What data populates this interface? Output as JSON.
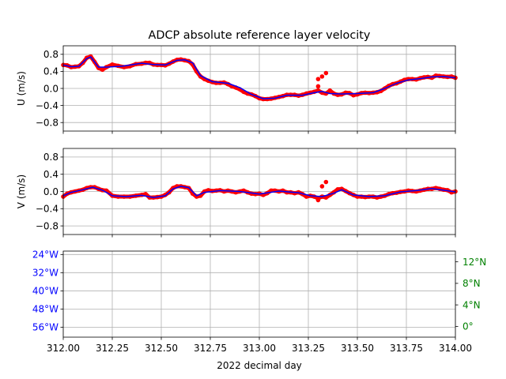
{
  "figure": {
    "title": "ADCP absolute reference layer velocity",
    "xlabel": "2022 decimal day"
  },
  "colors": {
    "raw": "#ff0000",
    "smoothed": "#0000ff",
    "grid": "#b0b0b0",
    "lon_axis": "#0000ff",
    "lat_axis": "#008000"
  },
  "chart_data": [
    {
      "type": "line",
      "ylabel": "U (m/s)",
      "xlim": [
        312.0,
        314.0
      ],
      "ylim": [
        -1.0,
        1.0
      ],
      "yticks": [
        -0.8,
        -0.4,
        0.0,
        0.4,
        0.8
      ],
      "yticklabels": [
        "−0.8",
        "−0.4",
        "0.0",
        "0.4",
        "0.8"
      ],
      "grid": true,
      "series": [
        {
          "role": "raw points",
          "color": "red",
          "x": [
            312.0,
            312.02,
            312.04,
            312.06,
            312.08,
            312.1,
            312.12,
            312.14,
            312.16,
            312.18,
            312.2,
            312.22,
            312.25,
            312.28,
            312.31,
            312.34,
            312.37,
            312.4,
            312.42,
            312.44,
            312.46,
            312.48,
            312.5,
            312.52,
            312.54,
            312.56,
            312.58,
            312.6,
            312.62,
            312.64,
            312.66,
            312.68,
            312.7,
            312.72,
            312.74,
            312.76,
            312.78,
            312.8,
            312.82,
            312.84,
            312.86,
            312.88,
            312.9,
            312.92,
            312.94,
            312.96,
            312.98,
            313.0,
            313.02,
            313.04,
            313.06,
            313.08,
            313.1,
            313.12,
            313.14,
            313.16,
            313.18,
            313.2,
            313.22,
            313.24,
            313.26,
            313.28,
            313.3,
            313.32,
            313.34,
            313.36,
            313.38,
            313.4,
            313.42,
            313.44,
            313.46,
            313.48,
            313.5,
            313.52,
            313.54,
            313.56,
            313.58,
            313.6,
            313.62,
            313.64,
            313.66,
            313.68,
            313.7,
            313.72,
            313.74,
            313.76,
            313.78,
            313.8,
            313.82,
            313.84,
            313.86,
            313.88,
            313.9,
            313.92,
            313.94,
            313.96,
            313.98,
            314.0
          ],
          "y": [
            0.55,
            0.54,
            0.5,
            0.51,
            0.52,
            0.6,
            0.72,
            0.75,
            0.62,
            0.48,
            0.44,
            0.5,
            0.56,
            0.53,
            0.5,
            0.52,
            0.57,
            0.58,
            0.6,
            0.6,
            0.56,
            0.55,
            0.55,
            0.54,
            0.58,
            0.63,
            0.67,
            0.68,
            0.66,
            0.64,
            0.56,
            0.4,
            0.28,
            0.22,
            0.18,
            0.15,
            0.13,
            0.13,
            0.14,
            0.1,
            0.05,
            0.02,
            -0.02,
            -0.08,
            -0.12,
            -0.14,
            -0.18,
            -0.23,
            -0.25,
            -0.25,
            -0.24,
            -0.22,
            -0.2,
            -0.18,
            -0.15,
            -0.15,
            -0.15,
            -0.17,
            -0.15,
            -0.12,
            -0.1,
            -0.08,
            -0.05,
            -0.1,
            -0.12,
            -0.05,
            -0.12,
            -0.15,
            -0.14,
            -0.1,
            -0.11,
            -0.16,
            -0.14,
            -0.11,
            -0.1,
            -0.11,
            -0.1,
            -0.09,
            -0.06,
            0.0,
            0.06,
            0.1,
            0.12,
            0.16,
            0.2,
            0.22,
            0.22,
            0.21,
            0.24,
            0.26,
            0.27,
            0.25,
            0.3,
            0.29,
            0.28,
            0.27,
            0.28,
            0.25
          ],
          "outliers": {
            "x": [
              313.3,
              313.3,
              313.32,
              313.34
            ],
            "y": [
              0.05,
              0.22,
              0.28,
              0.36
            ]
          }
        },
        {
          "role": "smoothed",
          "color": "blue",
          "x": [
            312.0,
            312.04,
            312.08,
            312.12,
            312.14,
            312.18,
            312.22,
            312.3,
            312.4,
            312.46,
            312.52,
            312.58,
            312.62,
            312.66,
            312.7,
            312.76,
            312.84,
            312.9,
            312.96,
            313.02,
            313.08,
            313.14,
            313.22,
            313.28,
            313.32,
            313.36,
            313.42,
            313.5,
            313.58,
            313.64,
            313.7,
            313.76,
            313.82,
            313.88,
            313.94,
            314.0
          ],
          "y": [
            0.55,
            0.51,
            0.52,
            0.7,
            0.74,
            0.5,
            0.5,
            0.52,
            0.59,
            0.56,
            0.55,
            0.66,
            0.67,
            0.6,
            0.3,
            0.16,
            0.12,
            0.02,
            -0.14,
            -0.24,
            -0.23,
            -0.16,
            -0.16,
            -0.1,
            -0.07,
            -0.12,
            -0.13,
            -0.12,
            -0.1,
            0.0,
            0.12,
            0.2,
            0.23,
            0.27,
            0.28,
            0.25
          ]
        }
      ]
    },
    {
      "type": "line",
      "ylabel": "V (m/s)",
      "xlim": [
        312.0,
        314.0
      ],
      "ylim": [
        -1.0,
        1.0
      ],
      "yticks": [
        -0.8,
        -0.4,
        0.0,
        0.4,
        0.8
      ],
      "yticklabels": [
        "−0.8",
        "−0.4",
        "0.0",
        "0.4",
        "0.8"
      ],
      "grid": true,
      "series": [
        {
          "role": "raw points",
          "color": "red",
          "x": [
            312.0,
            312.02,
            312.04,
            312.06,
            312.08,
            312.1,
            312.12,
            312.14,
            312.16,
            312.18,
            312.2,
            312.22,
            312.25,
            312.28,
            312.31,
            312.34,
            312.37,
            312.4,
            312.42,
            312.44,
            312.46,
            312.48,
            312.5,
            312.52,
            312.54,
            312.56,
            312.58,
            312.6,
            312.62,
            312.64,
            312.66,
            312.68,
            312.7,
            312.72,
            312.74,
            312.76,
            312.78,
            312.8,
            312.82,
            312.84,
            312.86,
            312.88,
            312.9,
            312.92,
            312.94,
            312.96,
            312.98,
            313.0,
            313.02,
            313.04,
            313.06,
            313.08,
            313.1,
            313.12,
            313.14,
            313.16,
            313.18,
            313.2,
            313.22,
            313.24,
            313.26,
            313.28,
            313.3,
            313.32,
            313.34,
            313.36,
            313.38,
            313.4,
            313.42,
            313.44,
            313.46,
            313.48,
            313.5,
            313.52,
            313.54,
            313.56,
            313.58,
            313.6,
            313.62,
            313.64,
            313.66,
            313.68,
            313.7,
            313.72,
            313.74,
            313.76,
            313.78,
            313.8,
            313.82,
            313.84,
            313.86,
            313.88,
            313.9,
            313.92,
            313.94,
            313.96,
            313.98,
            314.0
          ],
          "y": [
            -0.12,
            -0.05,
            -0.02,
            0.0,
            0.02,
            0.04,
            0.08,
            0.1,
            0.1,
            0.06,
            0.03,
            0.02,
            -0.1,
            -0.12,
            -0.12,
            -0.12,
            -0.1,
            -0.08,
            -0.06,
            -0.14,
            -0.14,
            -0.13,
            -0.12,
            -0.08,
            -0.02,
            0.08,
            0.12,
            0.12,
            0.1,
            0.08,
            -0.05,
            -0.12,
            -0.1,
            0.0,
            0.03,
            0.01,
            0.02,
            0.03,
            0.0,
            0.02,
            0.0,
            -0.02,
            0.0,
            0.02,
            -0.02,
            -0.05,
            -0.06,
            -0.05,
            -0.08,
            -0.04,
            0.02,
            0.02,
            0.0,
            0.02,
            -0.02,
            -0.02,
            -0.04,
            -0.02,
            -0.06,
            -0.12,
            -0.1,
            -0.12,
            -0.16,
            -0.12,
            -0.14,
            -0.08,
            -0.02,
            0.05,
            0.06,
            0.01,
            -0.04,
            -0.08,
            -0.12,
            -0.12,
            -0.13,
            -0.12,
            -0.12,
            -0.14,
            -0.12,
            -0.1,
            -0.06,
            -0.04,
            -0.03,
            -0.01,
            0.0,
            0.02,
            0.01,
            0.0,
            0.02,
            0.04,
            0.06,
            0.06,
            0.08,
            0.06,
            0.04,
            0.03,
            -0.02,
            0.0
          ],
          "outliers": {
            "x": [
              313.32,
              313.34,
              313.3
            ],
            "y": [
              0.12,
              0.22,
              -0.2
            ]
          }
        },
        {
          "role": "smoothed",
          "color": "blue",
          "x": [
            312.0,
            312.04,
            312.1,
            312.15,
            312.2,
            312.25,
            312.32,
            312.4,
            312.46,
            312.52,
            312.56,
            312.6,
            312.64,
            312.68,
            312.72,
            312.8,
            312.9,
            313.0,
            313.1,
            313.2,
            313.26,
            313.32,
            313.38,
            313.42,
            313.48,
            313.56,
            313.64,
            313.72,
            313.8,
            313.88,
            313.94,
            314.0
          ],
          "y": [
            -0.1,
            -0.02,
            0.04,
            0.1,
            0.03,
            -0.1,
            -0.12,
            -0.09,
            -0.14,
            -0.1,
            0.06,
            0.12,
            0.09,
            -0.1,
            -0.02,
            0.02,
            0.0,
            -0.06,
            0.01,
            -0.03,
            -0.1,
            -0.12,
            -0.04,
            0.04,
            -0.08,
            -0.12,
            -0.1,
            -0.01,
            0.02,
            0.07,
            0.03,
            -0.01
          ]
        }
      ]
    },
    {
      "type": "line",
      "note_axes": "dual y axes, no data drawn",
      "xlim": [
        312.0,
        314.0
      ],
      "xticks": [
        312.0,
        312.25,
        312.5,
        312.75,
        313.0,
        313.25,
        313.5,
        313.75,
        314.0
      ],
      "xticklabels": [
        "312.00",
        "312.25",
        "312.50",
        "312.75",
        "313.00",
        "313.25",
        "313.50",
        "313.75",
        "314.00"
      ],
      "grid": true,
      "left_axis": {
        "color": "blue",
        "ylim": [
          -60.4,
          -22.5
        ],
        "yticks": [
          -24,
          -32,
          -40,
          -48,
          -56
        ],
        "yticklabels": [
          "24°W",
          "32°W",
          "40°W",
          "48°W",
          "56°W"
        ]
      },
      "right_axis": {
        "color": "green",
        "ylim": [
          -2.0,
          14.0
        ],
        "yticks": [
          0,
          4,
          8,
          12
        ],
        "yticklabels": [
          "0°",
          "4°N",
          "8°N",
          "12°N"
        ]
      }
    }
  ]
}
